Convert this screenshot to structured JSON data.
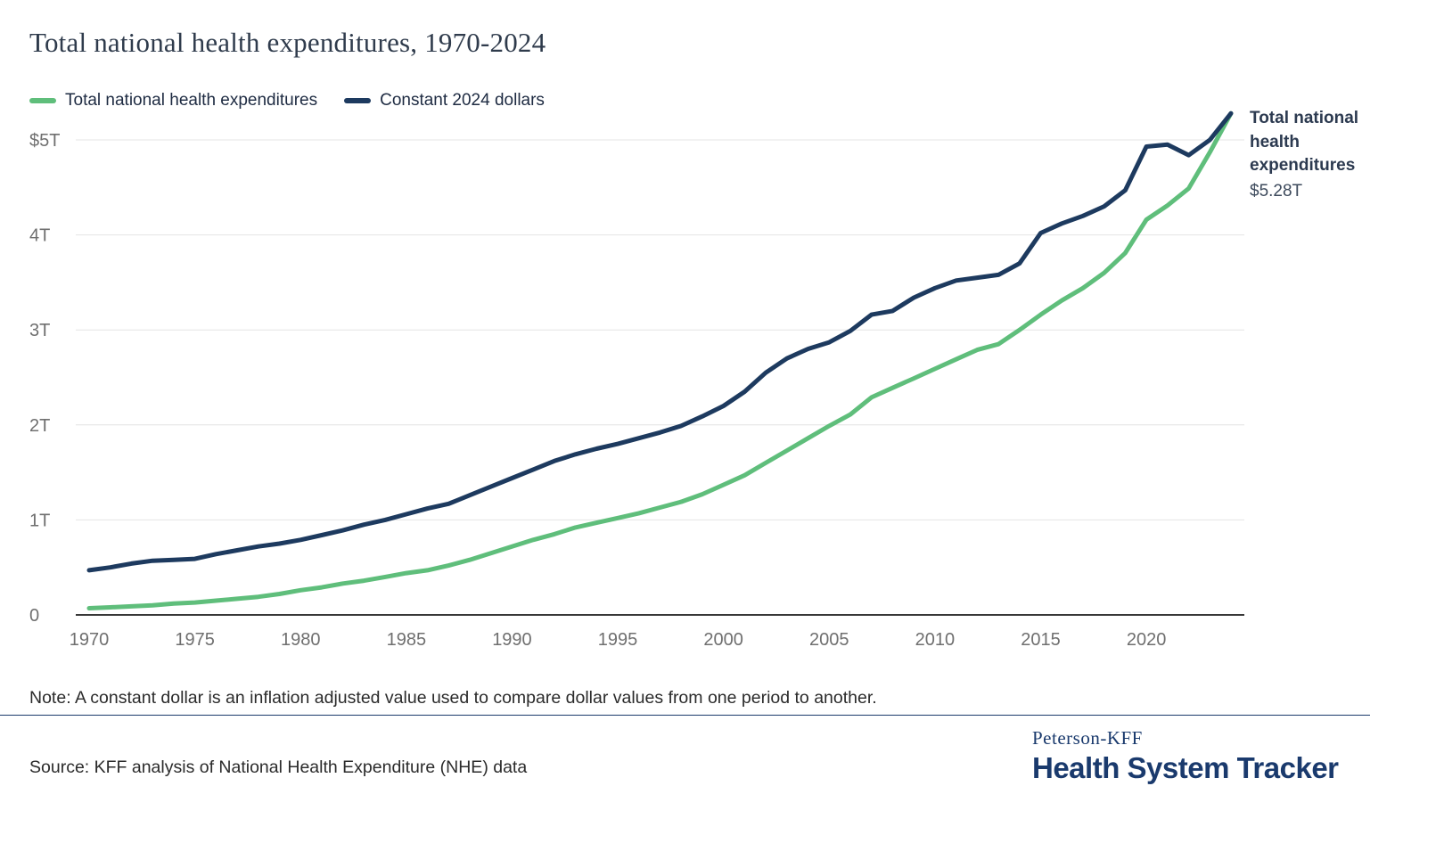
{
  "header": {
    "title": "Total national health expenditures, 1970-2024"
  },
  "annotation": {
    "title": "Total national health expenditures",
    "value": "$5.28T"
  },
  "note": "Note: A constant dollar is an inflation adjusted value used to compare dollar values from one period to another.",
  "source": "Source: KFF analysis of National Health Expenditure (NHE) data",
  "brand": {
    "peterson_kff": "Peterson-KFF",
    "health_system_tracker": "Health System Tracker"
  },
  "colors": {
    "gridline": "#e4e4e4",
    "axis": "#1c1c1c",
    "brand_navy": "#1b3a6b"
  },
  "chart_data": {
    "type": "line",
    "title": "Total national health expenditures, 1970-2024",
    "unit": "trillions of US dollars",
    "grid": "horizontal",
    "legend_position": "top-left",
    "xlim": [
      1970,
      2024
    ],
    "ylim": [
      0,
      5.4
    ],
    "x": [
      1970,
      1971,
      1972,
      1973,
      1974,
      1975,
      1976,
      1977,
      1978,
      1979,
      1980,
      1981,
      1982,
      1983,
      1984,
      1985,
      1986,
      1987,
      1988,
      1989,
      1990,
      1991,
      1992,
      1993,
      1994,
      1995,
      1996,
      1997,
      1998,
      1999,
      2000,
      2001,
      2002,
      2003,
      2004,
      2005,
      2006,
      2007,
      2008,
      2009,
      2010,
      2011,
      2012,
      2013,
      2014,
      2015,
      2016,
      2017,
      2018,
      2019,
      2020,
      2021,
      2022,
      2023,
      2024
    ],
    "series": [
      {
        "name": "Total national health expenditures",
        "color": "#5fbe7b",
        "values": [
          0.07,
          0.08,
          0.09,
          0.1,
          0.12,
          0.13,
          0.15,
          0.17,
          0.19,
          0.22,
          0.26,
          0.29,
          0.33,
          0.36,
          0.4,
          0.44,
          0.47,
          0.52,
          0.58,
          0.65,
          0.72,
          0.79,
          0.85,
          0.92,
          0.97,
          1.02,
          1.07,
          1.13,
          1.19,
          1.27,
          1.37,
          1.47,
          1.6,
          1.73,
          1.86,
          1.99,
          2.11,
          2.29,
          2.39,
          2.49,
          2.59,
          2.69,
          2.79,
          2.85,
          3.0,
          3.16,
          3.31,
          3.44,
          3.6,
          3.81,
          4.16,
          4.31,
          4.49,
          4.87,
          5.28
        ]
      },
      {
        "name": "Constant 2024 dollars",
        "color": "#1d3a5f",
        "values": [
          0.47,
          0.5,
          0.54,
          0.57,
          0.58,
          0.59,
          0.64,
          0.68,
          0.72,
          0.75,
          0.79,
          0.84,
          0.89,
          0.95,
          1.0,
          1.06,
          1.12,
          1.17,
          1.26,
          1.35,
          1.44,
          1.53,
          1.62,
          1.69,
          1.75,
          1.8,
          1.86,
          1.92,
          1.99,
          2.09,
          2.2,
          2.35,
          2.55,
          2.7,
          2.8,
          2.87,
          2.99,
          3.16,
          3.2,
          3.34,
          3.44,
          3.52,
          3.55,
          3.58,
          3.7,
          4.02,
          4.12,
          4.2,
          4.3,
          4.47,
          4.93,
          4.95,
          4.84,
          5.0,
          5.28
        ]
      }
    ],
    "y_ticks": [
      {
        "value": 0,
        "label": "0"
      },
      {
        "value": 1,
        "label": "1T"
      },
      {
        "value": 2,
        "label": "2T"
      },
      {
        "value": 3,
        "label": "3T"
      },
      {
        "value": 4,
        "label": "4T"
      },
      {
        "value": 5,
        "label": "$5T"
      }
    ],
    "x_ticks": [
      1970,
      1975,
      1980,
      1985,
      1990,
      1995,
      2000,
      2005,
      2010,
      2015,
      2020
    ],
    "end_label": {
      "series": "Total national health expenditures",
      "value": "$5.28T"
    }
  }
}
